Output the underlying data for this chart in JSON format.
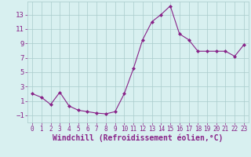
{
  "x": [
    0,
    1,
    2,
    3,
    4,
    5,
    6,
    7,
    8,
    9,
    10,
    11,
    12,
    13,
    14,
    15,
    16,
    17,
    18,
    19,
    20,
    21,
    22,
    23
  ],
  "y": [
    2.0,
    1.5,
    0.5,
    2.2,
    0.3,
    -0.3,
    -0.5,
    -0.7,
    -0.8,
    -0.5,
    2.0,
    5.5,
    9.5,
    12.0,
    13.0,
    14.2,
    10.3,
    9.5,
    7.9,
    7.9,
    7.9,
    7.9,
    7.2,
    8.8
  ],
  "line_color": "#882288",
  "marker": "D",
  "marker_size": 2,
  "bg_color": "#d8f0f0",
  "grid_color": "#aacccc",
  "xlabel": "Windchill (Refroidissement éolien,°C)",
  "xlabel_fontsize": 7,
  "tick_label_color": "#882288",
  "axis_label_color": "#882288",
  "yticks": [
    -1,
    1,
    3,
    5,
    7,
    9,
    11,
    13
  ],
  "xticks": [
    0,
    1,
    2,
    3,
    4,
    5,
    6,
    7,
    8,
    9,
    10,
    11,
    12,
    13,
    14,
    15,
    16,
    17,
    18,
    19,
    20,
    21,
    22,
    23
  ],
  "ylim": [
    -2,
    14.8
  ],
  "xlim": [
    -0.5,
    23.5
  ]
}
